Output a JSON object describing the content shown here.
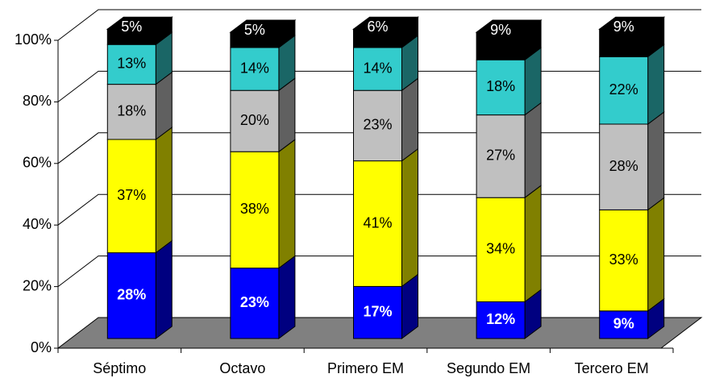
{
  "chart_data": {
    "type": "bar3d_stacked",
    "categories": [
      "Séptimo",
      "Octavo",
      "Primero EM",
      "Segundo EM",
      "Tercero EM"
    ],
    "series": [
      {
        "color": "#0000ff",
        "label_color": "#ffffff",
        "values": [
          28,
          23,
          17,
          12,
          9
        ],
        "value_labels": [
          "28%",
          "23%",
          "17%",
          "12%",
          "9%"
        ]
      },
      {
        "color": "#ffff00",
        "label_color": "#000000",
        "values": [
          37,
          38,
          41,
          34,
          33
        ],
        "value_labels": [
          "37%",
          "38%",
          "41%",
          "34%",
          "33%"
        ]
      },
      {
        "color": "#c0c0c0",
        "label_color": "#000000",
        "values": [
          18,
          20,
          23,
          27,
          28
        ],
        "value_labels": [
          "18%",
          "20%",
          "23%",
          "27%",
          "28%"
        ]
      },
      {
        "color": "#33cccc",
        "label_color": "#000000",
        "values": [
          13,
          14,
          14,
          18,
          22
        ],
        "value_labels": [
          "13%",
          "14%",
          "14%",
          "18%",
          "22%"
        ]
      },
      {
        "color": "#000000",
        "label_color": "#ffffff",
        "values": [
          5,
          5,
          6,
          9,
          9
        ],
        "value_labels": [
          "5%",
          "5%",
          "6%",
          "9%",
          "9%"
        ]
      }
    ],
    "ylim": [
      0,
      100
    ],
    "yticks": [
      {
        "value": 0,
        "label": "0%"
      },
      {
        "value": 20,
        "label": "20%"
      },
      {
        "value": 40,
        "label": "40%"
      },
      {
        "value": 60,
        "label": "60%"
      },
      {
        "value": 80,
        "label": "80%"
      },
      {
        "value": 100,
        "label": "100%"
      }
    ],
    "grid": true
  }
}
